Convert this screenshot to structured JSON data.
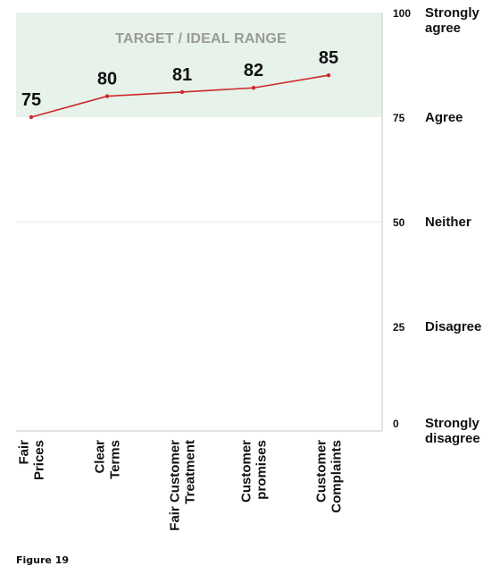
{
  "figure_caption": "Figure 19",
  "colors": {
    "band": "#e6f2ea",
    "line": "#cc2a2a",
    "axis": "#c9c9c9",
    "grid": "#e8e8e8",
    "text": "#111111",
    "band_label": "#9a9a9a"
  },
  "chart_data": {
    "type": "line",
    "categories": [
      [
        "Fair",
        "Prices"
      ],
      [
        "Clear",
        "Terms"
      ],
      [
        "Fair Customer",
        "Treatment"
      ],
      [
        "Customer",
        "promises"
      ],
      [
        "Customer",
        "Complaints"
      ]
    ],
    "series": [
      {
        "values": [
          75,
          80,
          81,
          82,
          85
        ]
      }
    ],
    "data_labels": [
      "75",
      "80",
      "81",
      "82",
      "85"
    ],
    "ylim": [
      0,
      100
    ],
    "y_ticks": [
      {
        "value": 100,
        "number": "100",
        "label": [
          "Strongly",
          "agree"
        ]
      },
      {
        "value": 75,
        "number": "75",
        "label": [
          "Agree"
        ]
      },
      {
        "value": 50,
        "number": "50",
        "label": [
          "Neither"
        ]
      },
      {
        "value": 25,
        "number": "25",
        "label": [
          "Disagree"
        ]
      },
      {
        "value": 0,
        "number": "0",
        "label": [
          "Strongly",
          "disagree"
        ]
      }
    ],
    "target_band": {
      "from": 75,
      "to": 100,
      "label": "TARGET / IDEAL RANGE"
    },
    "grid": true,
    "legend": "none"
  }
}
